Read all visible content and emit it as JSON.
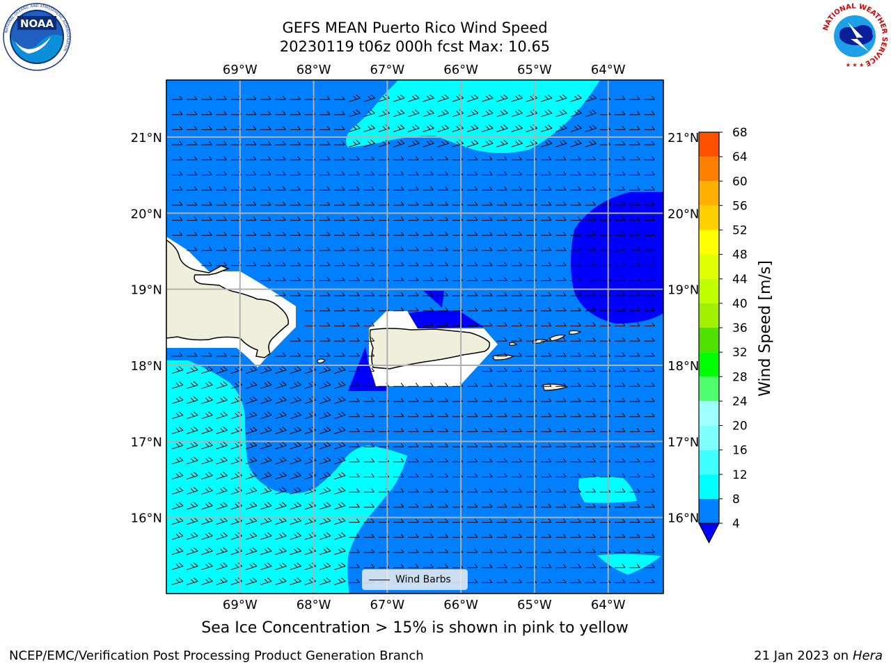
{
  "title": {
    "line1": "GEFS MEAN Puerto Rico Wind Speed",
    "line2": "20230119 t06z 000h fcst   Max: 10.65"
  },
  "map": {
    "lon_ticks": [
      "69°W",
      "68°W",
      "67°W",
      "66°W",
      "65°W",
      "64°W"
    ],
    "lat_ticks": [
      "21°N",
      "20°N",
      "19°N",
      "18°N",
      "17°N",
      "16°N"
    ],
    "lon_values": [
      -69,
      -68,
      -67,
      -66,
      -65,
      -64
    ],
    "lat_values": [
      21,
      20,
      19,
      18,
      17,
      16
    ],
    "extent": {
      "lon_min": -70.0,
      "lon_max": -63.25,
      "lat_min": 15.0,
      "lat_max": 21.75
    },
    "land_color": "#efefdb",
    "legend_label": "Wind Barbs"
  },
  "colorbar": {
    "label": "Wind Speed [m/s]",
    "ticks": [
      "68",
      "64",
      "60",
      "56",
      "52",
      "48",
      "44",
      "40",
      "36",
      "32",
      "28",
      "24",
      "20",
      "16",
      "12",
      "8",
      "4"
    ],
    "levels": [
      4,
      8,
      12,
      16,
      20,
      24,
      28,
      32,
      36,
      40,
      44,
      48,
      52,
      56,
      60,
      64,
      68
    ],
    "colors": [
      "#0080ff",
      "#00ffff",
      "#40ffff",
      "#80ffff",
      "#a0ffff",
      "#50ff70",
      "#00ff00",
      "#50e000",
      "#a0f000",
      "#c0ff00",
      "#e0ff00",
      "#ffff00",
      "#ffd000",
      "#ffb000",
      "#ff8000",
      "#ff5000",
      "#ff2000"
    ],
    "under_color": "#0000ff"
  },
  "subtitle": "Sea Ice Concentration > 15% is shown in pink to yellow",
  "footer": {
    "left": "NCEP/EMC/Verification Post Processing Product Generation Branch",
    "right_date": "21 Jan 2023 on ",
    "right_machine": "Hera"
  },
  "logos": {
    "left": {
      "text": "NOAA",
      "ring_text": "NATIONAL OCEANIC AND ATMOSPHERIC ADMINISTRATION"
    },
    "right": {
      "ring_text": "NATIONAL WEATHER SERVICE"
    }
  }
}
